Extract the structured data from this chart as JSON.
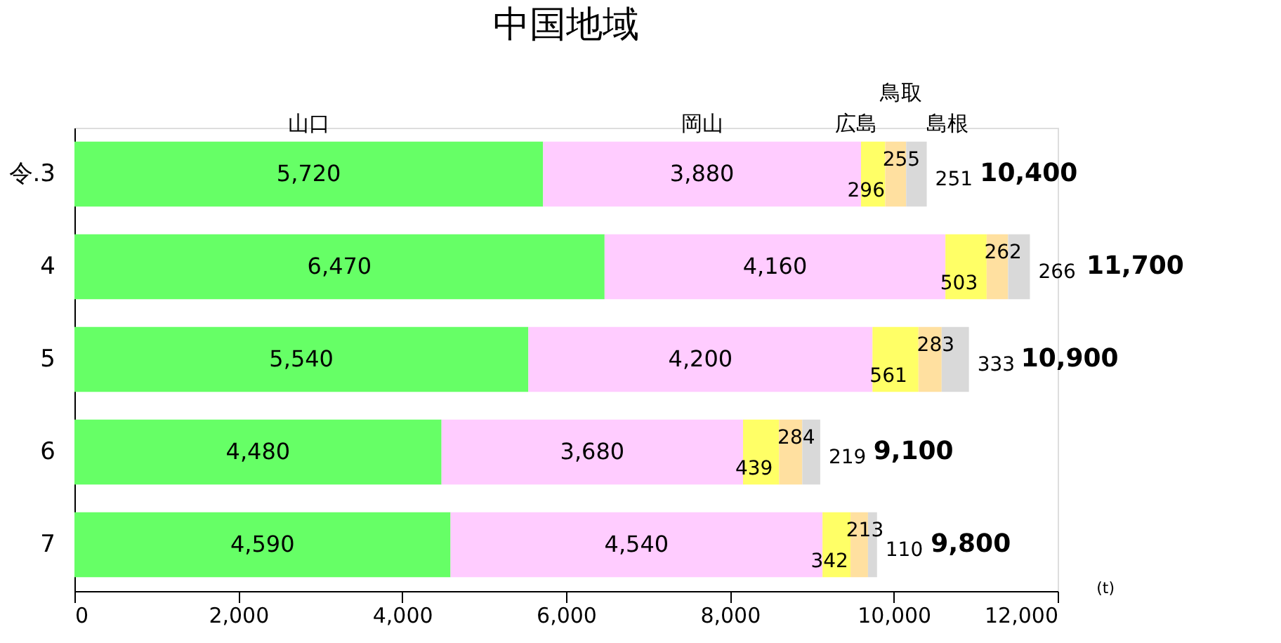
{
  "chart_data": {
    "type": "bar",
    "orientation": "horizontal",
    "stacked": true,
    "title": "中国地域",
    "xlabel": "(t)",
    "categories": [
      "令.3",
      "4",
      "5",
      "6",
      "7"
    ],
    "series": [
      {
        "name": "山口",
        "color": "#66ff66",
        "values": [
          5720,
          6470,
          5540,
          4480,
          4590
        ],
        "value_labels": [
          "5,720",
          "6,470",
          "5,540",
          "4,480",
          "4,590"
        ]
      },
      {
        "name": "岡山",
        "color": "#ffccff",
        "values": [
          3880,
          4160,
          4200,
          3680,
          4540
        ],
        "value_labels": [
          "3,880",
          "4,160",
          "4,200",
          "3,680",
          "4,540"
        ]
      },
      {
        "name": "広島",
        "color": "#ffff66",
        "values": [
          296,
          503,
          561,
          439,
          342
        ],
        "value_labels": [
          "296",
          "503",
          "561",
          "439",
          "342"
        ]
      },
      {
        "name": "鳥取",
        "color": "#ffe0a0",
        "values": [
          255,
          262,
          283,
          284,
          213
        ],
        "value_labels": [
          "255",
          "262",
          "283",
          "284",
          "213"
        ]
      },
      {
        "name": "島根",
        "color": "#d9d9d9",
        "values": [
          251,
          266,
          333,
          219,
          110
        ],
        "value_labels": [
          "251",
          "266",
          "333",
          "219",
          "110"
        ]
      }
    ],
    "annotations": [
      {
        "text": "10,400",
        "x": 10400,
        "y": "令.3"
      },
      {
        "text": "11,700",
        "x": 11700,
        "y": "4"
      },
      {
        "text": "10,900",
        "x": 10900,
        "y": "5"
      },
      {
        "text": "9,100",
        "x": 9100,
        "y": "6"
      },
      {
        "text": "9,800",
        "x": 9800,
        "y": "7"
      }
    ],
    "xlim": [
      0,
      12000
    ],
    "xticks": [
      0,
      {
        "value": 2000,
        "label": "2,000"
      },
      {
        "value": 4000,
        "label": "4,000"
      },
      {
        "value": 6000,
        "label": "6,000"
      },
      {
        "value": 8000,
        "label": "8,000"
      },
      {
        "value": 10000,
        "label": "10,000"
      },
      {
        "value": 12000,
        "label": "12,000"
      }
    ],
    "grid": false,
    "legend": false
  }
}
